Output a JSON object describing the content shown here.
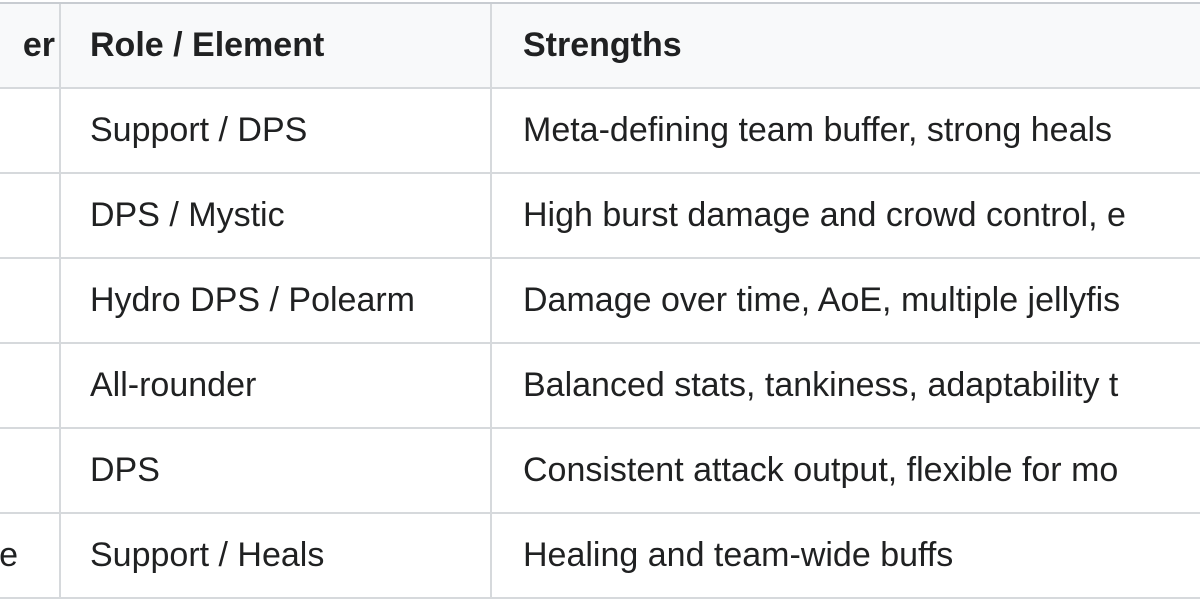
{
  "table": {
    "headers": [
      "er",
      "Role / Element",
      "Strengths"
    ],
    "rows": [
      {
        "c1": "",
        "role": "Support / DPS",
        "strengths": "Meta-defining team buffer, strong heals"
      },
      {
        "c1": "",
        "role": "DPS / Mystic",
        "strengths": "High burst damage and crowd control, e"
      },
      {
        "c1": "",
        "role": "Hydro DPS / Polearm",
        "strengths": "Damage over time, AoE, multiple jellyfis"
      },
      {
        "c1": "",
        "role": "All-rounder",
        "strengths": "Balanced stats, tankiness, adaptability t"
      },
      {
        "c1": "",
        "role": "DPS",
        "strengths": "Consistent attack output, flexible for mo"
      },
      {
        "c1": "e",
        "role": "Support / Heals",
        "strengths": "Healing and team-wide buffs"
      }
    ]
  }
}
